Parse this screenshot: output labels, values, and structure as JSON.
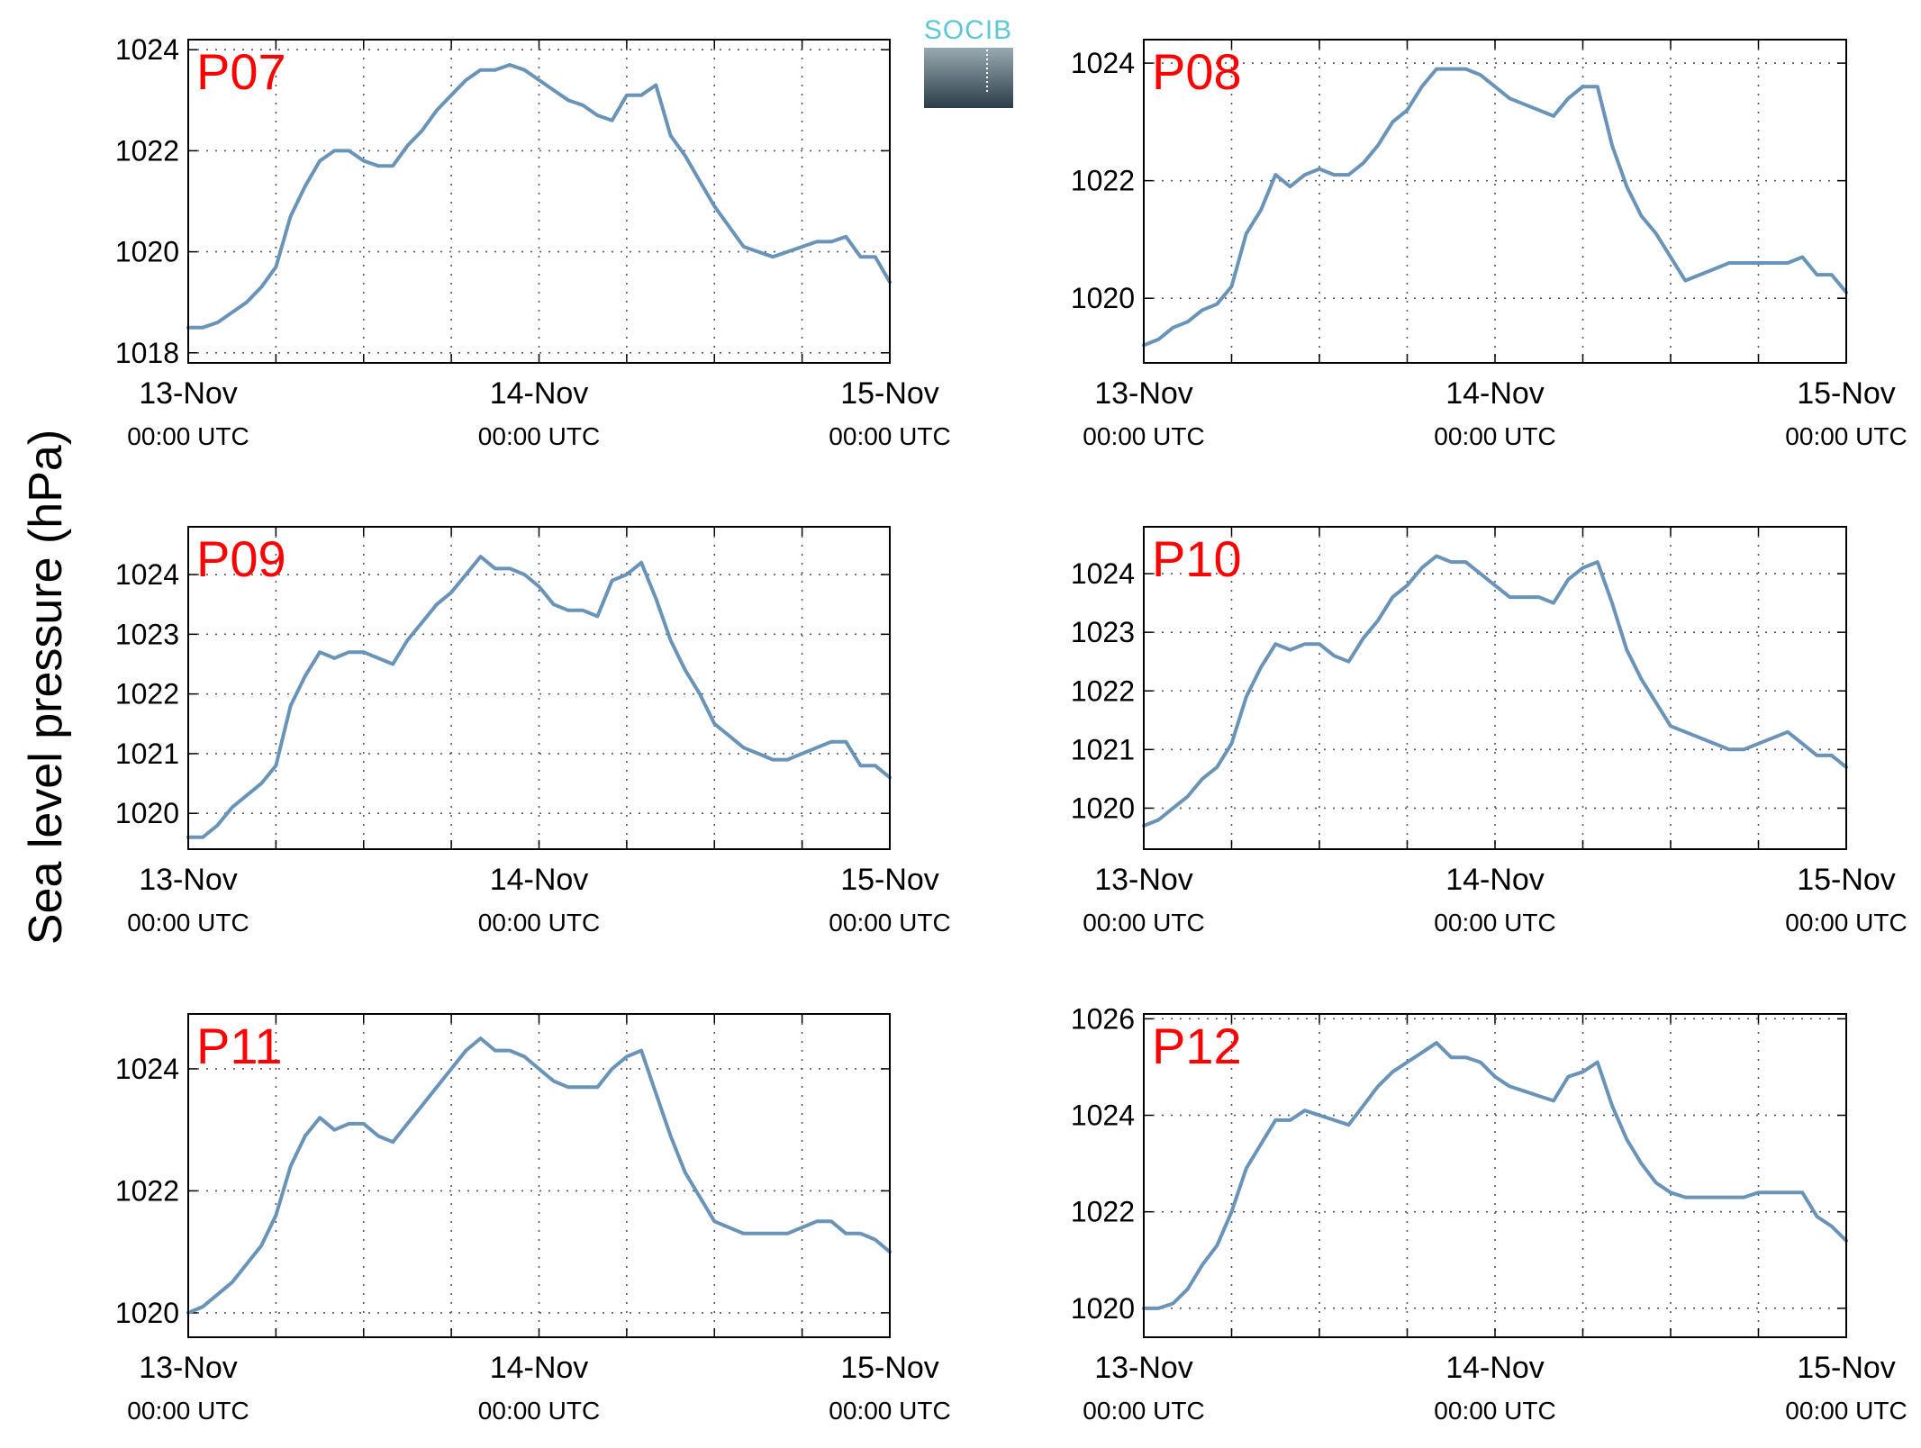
{
  "figure": {
    "ylabel": "Sea level pressure (hPa)",
    "logo_text": "SOCIB",
    "line_color": "#6a93b8",
    "label_color": "#ff0000"
  },
  "chart_data": [
    {
      "type": "line",
      "title": "P07",
      "x_ticks": [
        {
          "date": "13-Nov",
          "time": "00:00 UTC"
        },
        {
          "date": "14-Nov",
          "time": "00:00 UTC"
        },
        {
          "date": "15-Nov",
          "time": "00:00 UTC"
        }
      ],
      "x_range_hours": [
        0,
        48
      ],
      "ylim": [
        1017.8,
        1024.2
      ],
      "y_ticks": [
        1018,
        1020,
        1022,
        1024
      ],
      "grid": true,
      "series": [
        {
          "x": [
            0,
            1,
            2,
            3,
            4,
            5,
            6,
            7,
            8,
            9,
            10,
            11,
            12,
            13,
            14,
            15,
            16,
            17,
            18,
            19,
            20,
            21,
            22,
            23,
            24,
            25,
            26,
            27,
            28,
            29,
            30,
            31,
            32,
            33,
            34,
            35,
            36,
            37,
            38,
            39,
            40,
            41,
            42,
            43,
            44,
            45,
            46,
            47,
            48
          ],
          "y": [
            1018.5,
            1018.5,
            1018.6,
            1018.8,
            1019.0,
            1019.3,
            1019.7,
            1020.7,
            1021.3,
            1021.8,
            1022.0,
            1022.0,
            1021.8,
            1021.7,
            1021.7,
            1022.1,
            1022.4,
            1022.8,
            1023.1,
            1023.4,
            1023.6,
            1023.6,
            1023.7,
            1023.6,
            1023.4,
            1023.2,
            1023.0,
            1022.9,
            1022.7,
            1022.6,
            1023.1,
            1023.1,
            1023.3,
            1022.3,
            1021.9,
            1021.4,
            1020.9,
            1020.5,
            1020.1,
            1020.0,
            1019.9,
            1020.0,
            1020.1,
            1020.2,
            1020.2,
            1020.3,
            1019.9,
            1019.9,
            1019.4
          ]
        }
      ]
    },
    {
      "type": "line",
      "title": "P08",
      "x_ticks": [
        {
          "date": "13-Nov",
          "time": "00:00 UTC"
        },
        {
          "date": "14-Nov",
          "time": "00:00 UTC"
        },
        {
          "date": "15-Nov",
          "time": "00:00 UTC"
        }
      ],
      "x_range_hours": [
        0,
        48
      ],
      "ylim": [
        1018.9,
        1024.4
      ],
      "y_ticks": [
        1020,
        1022,
        1024
      ],
      "grid": true,
      "series": [
        {
          "x": [
            0,
            1,
            2,
            3,
            4,
            5,
            6,
            7,
            8,
            9,
            10,
            11,
            12,
            13,
            14,
            15,
            16,
            17,
            18,
            19,
            20,
            21,
            22,
            23,
            24,
            25,
            26,
            27,
            28,
            29,
            30,
            31,
            32,
            33,
            34,
            35,
            36,
            37,
            38,
            39,
            40,
            41,
            42,
            43,
            44,
            45,
            46,
            47,
            48
          ],
          "y": [
            1019.2,
            1019.3,
            1019.5,
            1019.6,
            1019.8,
            1019.9,
            1020.2,
            1021.1,
            1021.5,
            1022.1,
            1021.9,
            1022.1,
            1022.2,
            1022.1,
            1022.1,
            1022.3,
            1022.6,
            1023.0,
            1023.2,
            1023.6,
            1023.9,
            1023.9,
            1023.9,
            1023.8,
            1023.6,
            1023.4,
            1023.3,
            1023.2,
            1023.1,
            1023.4,
            1023.6,
            1023.6,
            1022.6,
            1021.9,
            1021.4,
            1021.1,
            1020.7,
            1020.3,
            1020.4,
            1020.5,
            1020.6,
            1020.6,
            1020.6,
            1020.6,
            1020.6,
            1020.7,
            1020.4,
            1020.4,
            1020.1
          ]
        }
      ]
    },
    {
      "type": "line",
      "title": "P09",
      "x_ticks": [
        {
          "date": "13-Nov",
          "time": "00:00 UTC"
        },
        {
          "date": "14-Nov",
          "time": "00:00 UTC"
        },
        {
          "date": "15-Nov",
          "time": "00:00 UTC"
        }
      ],
      "x_range_hours": [
        0,
        48
      ],
      "ylim": [
        1019.4,
        1024.8
      ],
      "y_ticks": [
        1020,
        1021,
        1022,
        1023,
        1024
      ],
      "grid": true,
      "series": [
        {
          "x": [
            0,
            1,
            2,
            3,
            4,
            5,
            6,
            7,
            8,
            9,
            10,
            11,
            12,
            13,
            14,
            15,
            16,
            17,
            18,
            19,
            20,
            21,
            22,
            23,
            24,
            25,
            26,
            27,
            28,
            29,
            30,
            31,
            32,
            33,
            34,
            35,
            36,
            37,
            38,
            39,
            40,
            41,
            42,
            43,
            44,
            45,
            46,
            47,
            48
          ],
          "y": [
            1019.6,
            1019.6,
            1019.8,
            1020.1,
            1020.3,
            1020.5,
            1020.8,
            1021.8,
            1022.3,
            1022.7,
            1022.6,
            1022.7,
            1022.7,
            1022.6,
            1022.5,
            1022.9,
            1023.2,
            1023.5,
            1023.7,
            1024.0,
            1024.3,
            1024.1,
            1024.1,
            1024.0,
            1023.8,
            1023.5,
            1023.4,
            1023.4,
            1023.3,
            1023.9,
            1024.0,
            1024.2,
            1023.6,
            1022.9,
            1022.4,
            1022.0,
            1021.5,
            1021.3,
            1021.1,
            1021.0,
            1020.9,
            1020.9,
            1021.0,
            1021.1,
            1021.2,
            1021.2,
            1020.8,
            1020.8,
            1020.6
          ]
        }
      ]
    },
    {
      "type": "line",
      "title": "P10",
      "x_ticks": [
        {
          "date": "13-Nov",
          "time": "00:00 UTC"
        },
        {
          "date": "14-Nov",
          "time": "00:00 UTC"
        },
        {
          "date": "15-Nov",
          "time": "00:00 UTC"
        }
      ],
      "x_range_hours": [
        0,
        48
      ],
      "ylim": [
        1019.3,
        1024.8
      ],
      "y_ticks": [
        1020,
        1021,
        1022,
        1023,
        1024
      ],
      "grid": true,
      "series": [
        {
          "x": [
            0,
            1,
            2,
            3,
            4,
            5,
            6,
            7,
            8,
            9,
            10,
            11,
            12,
            13,
            14,
            15,
            16,
            17,
            18,
            19,
            20,
            21,
            22,
            23,
            24,
            25,
            26,
            27,
            28,
            29,
            30,
            31,
            32,
            33,
            34,
            35,
            36,
            37,
            38,
            39,
            40,
            41,
            42,
            43,
            44,
            45,
            46,
            47,
            48
          ],
          "y": [
            1019.7,
            1019.8,
            1020.0,
            1020.2,
            1020.5,
            1020.7,
            1021.1,
            1021.9,
            1022.4,
            1022.8,
            1022.7,
            1022.8,
            1022.8,
            1022.6,
            1022.5,
            1022.9,
            1023.2,
            1023.6,
            1023.8,
            1024.1,
            1024.3,
            1024.2,
            1024.2,
            1024.0,
            1023.8,
            1023.6,
            1023.6,
            1023.6,
            1023.5,
            1023.9,
            1024.1,
            1024.2,
            1023.5,
            1022.7,
            1022.2,
            1021.8,
            1021.4,
            1021.3,
            1021.2,
            1021.1,
            1021.0,
            1021.0,
            1021.1,
            1021.2,
            1021.3,
            1021.1,
            1020.9,
            1020.9,
            1020.7
          ]
        }
      ]
    },
    {
      "type": "line",
      "title": "P11",
      "x_ticks": [
        {
          "date": "13-Nov",
          "time": "00:00 UTC"
        },
        {
          "date": "14-Nov",
          "time": "00:00 UTC"
        },
        {
          "date": "15-Nov",
          "time": "00:00 UTC"
        }
      ],
      "x_range_hours": [
        0,
        48
      ],
      "ylim": [
        1019.6,
        1024.9
      ],
      "y_ticks": [
        1020,
        1022,
        1024
      ],
      "grid": true,
      "series": [
        {
          "x": [
            0,
            1,
            2,
            3,
            4,
            5,
            6,
            7,
            8,
            9,
            10,
            11,
            12,
            13,
            14,
            15,
            16,
            17,
            18,
            19,
            20,
            21,
            22,
            23,
            24,
            25,
            26,
            27,
            28,
            29,
            30,
            31,
            32,
            33,
            34,
            35,
            36,
            37,
            38,
            39,
            40,
            41,
            42,
            43,
            44,
            45,
            46,
            47,
            48
          ],
          "y": [
            1020.0,
            1020.1,
            1020.3,
            1020.5,
            1020.8,
            1021.1,
            1021.6,
            1022.4,
            1022.9,
            1023.2,
            1023.0,
            1023.1,
            1023.1,
            1022.9,
            1022.8,
            1023.1,
            1023.4,
            1023.7,
            1024.0,
            1024.3,
            1024.5,
            1024.3,
            1024.3,
            1024.2,
            1024.0,
            1023.8,
            1023.7,
            1023.7,
            1023.7,
            1024.0,
            1024.2,
            1024.3,
            1023.6,
            1022.9,
            1022.3,
            1021.9,
            1021.5,
            1021.4,
            1021.3,
            1021.3,
            1021.3,
            1021.3,
            1021.4,
            1021.5,
            1021.5,
            1021.3,
            1021.3,
            1021.2,
            1021.0
          ]
        }
      ]
    },
    {
      "type": "line",
      "title": "P12",
      "x_ticks": [
        {
          "date": "13-Nov",
          "time": "00:00 UTC"
        },
        {
          "date": "14-Nov",
          "time": "00:00 UTC"
        },
        {
          "date": "15-Nov",
          "time": "00:00 UTC"
        }
      ],
      "x_range_hours": [
        0,
        48
      ],
      "ylim": [
        1019.4,
        1026.1
      ],
      "y_ticks": [
        1020,
        1022,
        1024,
        1026
      ],
      "grid": true,
      "series": [
        {
          "x": [
            0,
            1,
            2,
            3,
            4,
            5,
            6,
            7,
            8,
            9,
            10,
            11,
            12,
            13,
            14,
            15,
            16,
            17,
            18,
            19,
            20,
            21,
            22,
            23,
            24,
            25,
            26,
            27,
            28,
            29,
            30,
            31,
            32,
            33,
            34,
            35,
            36,
            37,
            38,
            39,
            40,
            41,
            42,
            43,
            44,
            45,
            46,
            47,
            48
          ],
          "y": [
            1020.0,
            1020.0,
            1020.1,
            1020.4,
            1020.9,
            1021.3,
            1022.0,
            1022.9,
            1023.4,
            1023.9,
            1023.9,
            1024.1,
            1024.0,
            1023.9,
            1023.8,
            1024.2,
            1024.6,
            1024.9,
            1025.1,
            1025.3,
            1025.5,
            1025.2,
            1025.2,
            1025.1,
            1024.8,
            1024.6,
            1024.5,
            1024.4,
            1024.3,
            1024.8,
            1024.9,
            1025.1,
            1024.2,
            1023.5,
            1023.0,
            1022.6,
            1022.4,
            1022.3,
            1022.3,
            1022.3,
            1022.3,
            1022.3,
            1022.4,
            1022.4,
            1022.4,
            1022.4,
            1021.9,
            1021.7,
            1021.4
          ]
        }
      ]
    }
  ]
}
